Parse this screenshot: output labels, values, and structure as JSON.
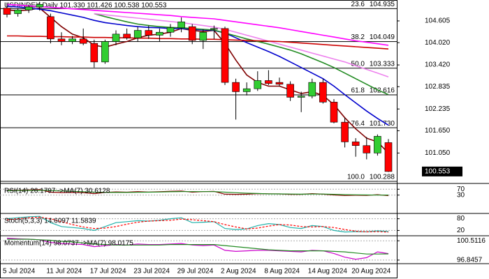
{
  "chart_data": [
    {
      "type": "candlestick",
      "title": "USDINDEX,Daily  101.330 101.426 100.538 100.553",
      "categories": [
        "5 Jul 2024",
        null,
        null,
        null,
        "11 Jul 2024",
        null,
        null,
        null,
        "17 Jul 2024",
        null,
        null,
        null,
        "23 Jul 2024",
        null,
        null,
        null,
        "29 Jul 2024",
        null,
        null,
        null,
        "2 Aug 2024",
        null,
        null,
        null,
        "8 Aug 2024",
        null,
        null,
        null,
        "14 Aug 2024",
        null,
        null,
        null,
        "20 Aug 2024",
        null,
        null,
        null
      ],
      "candles": {
        "open": [
          104.95,
          104.8,
          104.9,
          104.98,
          104.72,
          104.12,
          104.05,
          104.12,
          104.0,
          103.5,
          104.05,
          104.25,
          104.15,
          104.35,
          104.22,
          104.3,
          104.42,
          104.45,
          104.08,
          104.38,
          104.4,
          102.95,
          102.7,
          102.78,
          103.0,
          102.95,
          102.9,
          102.55,
          102.58,
          102.95,
          102.42,
          101.88,
          101.35,
          101.25,
          101.05,
          101.33
        ],
        "high": [
          105.1,
          104.95,
          105.05,
          105.12,
          104.8,
          104.3,
          104.2,
          104.4,
          104.1,
          104.1,
          104.35,
          104.4,
          104.45,
          104.48,
          104.4,
          104.52,
          104.7,
          104.52,
          104.38,
          104.48,
          104.45,
          103.05,
          102.95,
          103.25,
          103.28,
          103.08,
          102.98,
          102.7,
          103.05,
          103.05,
          102.5,
          102.0,
          101.45,
          101.48,
          101.55,
          101.426
        ],
        "low": [
          104.7,
          104.72,
          104.82,
          104.88,
          104.0,
          103.95,
          103.98,
          103.95,
          103.35,
          103.45,
          103.95,
          104.1,
          104.05,
          104.12,
          104.05,
          104.18,
          104.3,
          103.98,
          103.85,
          104.12,
          102.88,
          101.95,
          102.6,
          102.72,
          102.88,
          102.85,
          102.45,
          102.15,
          102.52,
          102.38,
          101.85,
          101.2,
          100.95,
          100.88,
          100.98,
          100.538
        ],
        "close": [
          104.78,
          104.9,
          104.98,
          105.05,
          104.12,
          104.05,
          104.12,
          104.0,
          103.5,
          104.05,
          104.25,
          104.15,
          104.35,
          104.22,
          104.3,
          104.42,
          104.58,
          104.08,
          104.3,
          104.4,
          102.95,
          102.7,
          102.78,
          103.0,
          102.92,
          102.9,
          102.55,
          102.58,
          102.95,
          102.42,
          101.88,
          101.35,
          101.25,
          101.05,
          101.5,
          100.553
        ]
      },
      "up_color": "#32cd32",
      "down_color": "#ff0000",
      "overlays": [
        {
          "color": "#800000",
          "values": [
            104.9,
            104.88,
            104.9,
            104.95,
            104.7,
            104.45,
            104.25,
            104.15,
            103.95,
            103.9,
            103.98,
            104.05,
            104.15,
            104.22,
            104.25,
            104.3,
            104.4,
            104.35,
            104.32,
            104.35,
            104.0,
            103.55,
            103.15,
            102.95,
            102.85,
            102.85,
            102.75,
            102.65,
            102.7,
            102.6,
            102.35,
            102.0,
            101.7,
            101.45,
            101.35,
            101.05
          ]
        },
        {
          "color": "#0000cd",
          "values": [
            105.0,
            104.98,
            104.95,
            104.92,
            104.88,
            104.82,
            104.76,
            104.7,
            104.62,
            104.56,
            104.52,
            104.48,
            104.45,
            104.43,
            104.42,
            104.4,
            104.4,
            104.38,
            104.36,
            104.35,
            104.28,
            104.15,
            104.02,
            103.9,
            103.78,
            103.65,
            103.5,
            103.35,
            103.2,
            103.05,
            102.85,
            102.62,
            102.4,
            102.18,
            101.98,
            101.8
          ]
        },
        {
          "color": "#228b22",
          "values": [
            null,
            null,
            null,
            null,
            null,
            null,
            null,
            null,
            104.8,
            104.72,
            104.65,
            104.58,
            104.52,
            104.48,
            104.45,
            104.43,
            104.42,
            104.4,
            104.38,
            104.36,
            104.28,
            104.2,
            104.12,
            104.05,
            103.98,
            103.9,
            103.82,
            103.72,
            103.6,
            103.48,
            103.35,
            103.2,
            103.05,
            102.9,
            102.75,
            102.62
          ]
        },
        {
          "color": "#ff00ff",
          "values": [
            105.05,
            105.03,
            105.01,
            104.99,
            104.97,
            104.95,
            104.93,
            104.91,
            104.89,
            104.87,
            104.85,
            104.83,
            104.81,
            104.79,
            104.77,
            104.75,
            104.72,
            104.7,
            104.68,
            104.66,
            104.62,
            104.58,
            104.54,
            104.5,
            104.46,
            104.42,
            104.37,
            104.32,
            104.27,
            104.22,
            104.17,
            104.12,
            104.07,
            104.03,
            103.99,
            103.95
          ]
        },
        {
          "color": "#ee82ee",
          "values": [
            null,
            null,
            null,
            null,
            null,
            null,
            null,
            null,
            104.8,
            104.77,
            104.74,
            104.71,
            104.68,
            104.65,
            104.62,
            104.59,
            104.56,
            104.52,
            104.48,
            104.44,
            104.38,
            104.3,
            104.22,
            104.14,
            104.06,
            103.98,
            103.9,
            103.82,
            103.74,
            103.66,
            103.58,
            103.5,
            103.4,
            103.3,
            103.2,
            103.1
          ]
        },
        {
          "color": "#cc0000",
          "values": [
            104.2,
            104.2,
            104.19,
            104.19,
            104.18,
            104.18,
            104.17,
            104.17,
            104.16,
            104.16,
            104.15,
            104.15,
            104.14,
            104.14,
            104.13,
            104.13,
            104.12,
            104.12,
            104.11,
            104.11,
            104.1,
            104.09,
            104.08,
            104.07,
            104.06,
            104.05,
            104.03,
            104.01,
            103.99,
            103.97,
            103.95,
            103.93,
            103.91,
            103.89,
            103.87,
            103.85
          ]
        }
      ],
      "levels": [
        {
          "level": "23.6",
          "value": 104.935,
          "label": "104.935"
        },
        {
          "level": "38.2",
          "value": 104.049,
          "label": "104.049"
        },
        {
          "level": "50.0",
          "value": 103.333,
          "label": "103.333"
        },
        {
          "level": "61.8",
          "value": 102.616,
          "label": "102.616"
        },
        {
          "level": "76.4",
          "value": 101.73,
          "label": "101.730"
        },
        {
          "level": "100.0",
          "value": 100.288,
          "label": "100.288"
        }
      ],
      "ylim": [
        100.25,
        105.13
      ],
      "yticks": [
        104.605,
        {
          "value": 104.02,
          "label": "104.020"
        },
        {
          "value": 103.42,
          "label": "103.420"
        },
        102.835,
        102.235,
        {
          "value": 101.65,
          "label": "101.650"
        },
        {
          "value": 101.05,
          "label": "101.050"
        }
      ]
    },
    {
      "type": "line",
      "title": "RSI(14) 26.1797 ->MA(7) 30.6128",
      "series": [
        {
          "color": "#8b0000",
          "values": [
            62,
            63,
            65,
            67,
            50,
            47,
            48,
            46,
            40,
            48,
            52,
            50,
            54,
            51,
            53,
            56,
            58,
            50,
            54,
            55,
            36,
            35,
            36,
            40,
            39,
            38,
            35,
            35,
            40,
            36,
            31,
            27,
            29,
            28,
            33,
            26.1797
          ]
        },
        {
          "color": "#228b22",
          "values": [
            60,
            61,
            62,
            63,
            61,
            58,
            56,
            53,
            50,
            48,
            48,
            48,
            49,
            50,
            51,
            53,
            54,
            54,
            54,
            54,
            50,
            46,
            43,
            41,
            38,
            38,
            37,
            36,
            37,
            37,
            35,
            33,
            32,
            31,
            30,
            30.6128
          ]
        }
      ],
      "ylim": [
        0,
        100
      ],
      "yticks": [
        30,
        70
      ]
    },
    {
      "type": "line",
      "title": "Stoch(5,3,3) 14.6097 11.5839",
      "series": [
        {
          "color": "#20b2aa",
          "values": [
            80,
            85,
            90,
            92,
            60,
            40,
            35,
            30,
            20,
            40,
            60,
            65,
            70,
            68,
            72,
            80,
            85,
            60,
            62,
            65,
            30,
            25,
            28,
            45,
            55,
            50,
            35,
            30,
            45,
            40,
            20,
            12,
            14,
            13,
            18,
            14.6097
          ]
        },
        {
          "color": "#ff0000",
          "values": [
            75,
            80,
            85,
            88,
            80,
            65,
            50,
            38,
            30,
            32,
            40,
            52,
            62,
            68,
            70,
            72,
            78,
            75,
            70,
            65,
            50,
            38,
            28,
            32,
            42,
            50,
            48,
            40,
            38,
            40,
            35,
            25,
            16,
            13,
            14,
            11.5839
          ]
        }
      ],
      "ylim": [
        0,
        100
      ],
      "yticks": [
        20,
        80
      ]
    },
    {
      "type": "line",
      "title": "Momentum(14) 98.0737 ->MA(7) 98.0175",
      "series": [
        {
          "color": "#cc00cc",
          "values": [
            101.0,
            100.9,
            100.8,
            100.7,
            100.2,
            100.0,
            99.9,
            99.8,
            99.4,
            99.6,
            99.8,
            99.7,
            99.9,
            99.8,
            99.8,
            99.9,
            100.0,
            99.7,
            99.6,
            99.7,
            98.7,
            98.5,
            98.6,
            98.7,
            98.7,
            98.6,
            98.5,
            98.4,
            98.7,
            98.6,
            98.1,
            97.4,
            97.0,
            97.3,
            98.4,
            98.0737
          ]
        },
        {
          "color": "#228b22",
          "values": [
            100.8,
            100.8,
            100.8,
            100.7,
            100.6,
            100.4,
            100.3,
            100.1,
            99.9,
            99.8,
            99.7,
            99.7,
            99.7,
            99.7,
            99.7,
            99.8,
            99.8,
            99.8,
            99.8,
            99.8,
            99.6,
            99.4,
            99.2,
            99.0,
            98.8,
            98.7,
            98.6,
            98.6,
            98.6,
            98.6,
            98.5,
            98.4,
            98.2,
            98.0,
            98.0,
            98.0175
          ]
        }
      ],
      "ylim": [
        96.3,
        101.2
      ],
      "yticks": [
        100.5116,
        96.8457
      ]
    }
  ]
}
